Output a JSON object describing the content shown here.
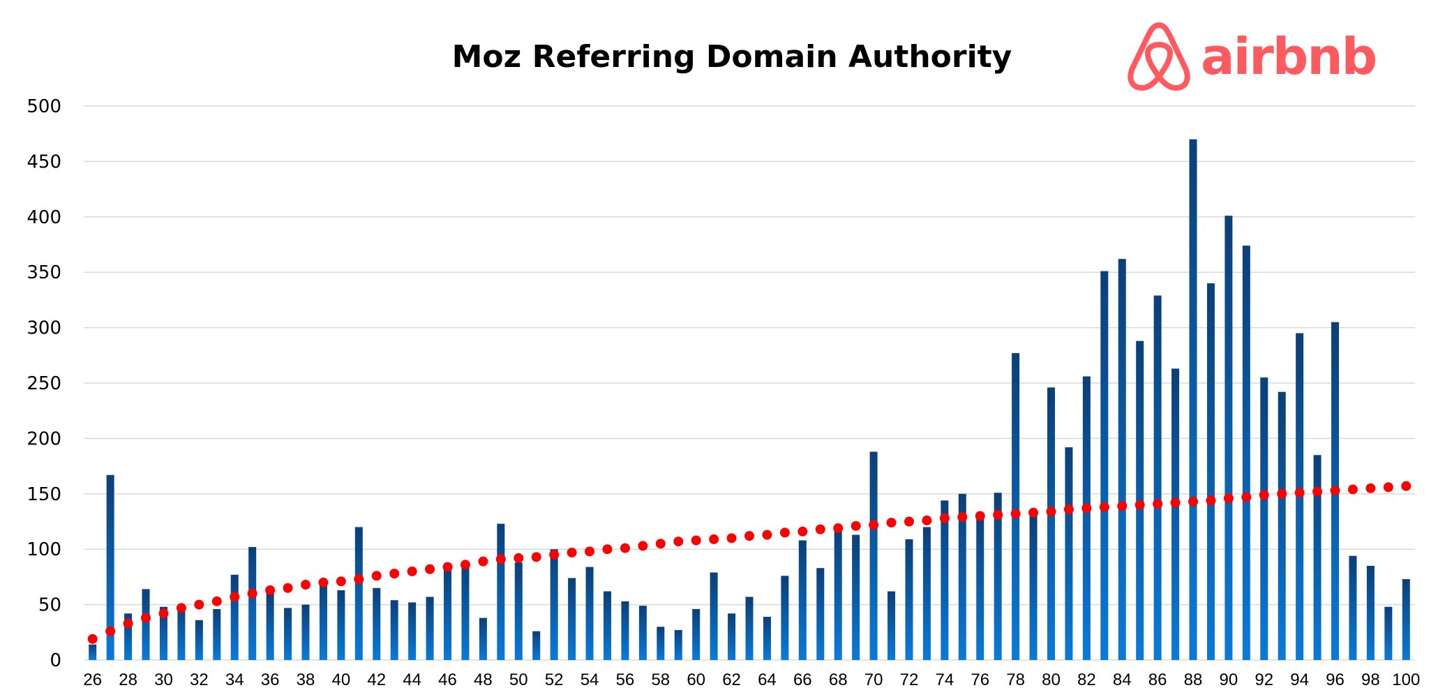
{
  "chart_data": {
    "type": "bar",
    "title": "Moz Referring Domain Authority",
    "xlabel": "",
    "ylabel": "",
    "ylim": [
      0,
      500
    ],
    "yticks": [
      0,
      50,
      100,
      150,
      200,
      250,
      300,
      350,
      400,
      450,
      500
    ],
    "grid": true,
    "legend": "none",
    "x": [
      26,
      27,
      28,
      29,
      30,
      31,
      32,
      33,
      34,
      35,
      36,
      37,
      38,
      39,
      40,
      41,
      42,
      43,
      44,
      45,
      46,
      47,
      48,
      49,
      50,
      51,
      52,
      53,
      54,
      55,
      56,
      57,
      58,
      59,
      60,
      61,
      62,
      63,
      64,
      65,
      66,
      67,
      68,
      69,
      70,
      71,
      72,
      73,
      74,
      75,
      76,
      77,
      78,
      79,
      80,
      81,
      82,
      83,
      84,
      85,
      86,
      87,
      88,
      89,
      90,
      91,
      92,
      93,
      94,
      95,
      96,
      97,
      98,
      99,
      100
    ],
    "series": [
      {
        "type": "bar",
        "color_top": "#0b3f78",
        "color_bottom": "#0a7ad8",
        "values": [
          14,
          167,
          42,
          64,
          48,
          49,
          36,
          46,
          77,
          102,
          60,
          47,
          50,
          72,
          63,
          120,
          65,
          54,
          52,
          57,
          85,
          87,
          38,
          123,
          88,
          26,
          100,
          74,
          84,
          62,
          53,
          49,
          30,
          27,
          46,
          79,
          42,
          57,
          39,
          76,
          108,
          83,
          119,
          113,
          188,
          62,
          109,
          120,
          144,
          150,
          133,
          151,
          277,
          131,
          246,
          192,
          256,
          351,
          362,
          288,
          329,
          263,
          470,
          340,
          401,
          374,
          255,
          242,
          295,
          185,
          305,
          94,
          85,
          48,
          73
        ]
      },
      {
        "type": "trendline-dots",
        "color": "#ff0000",
        "values": [
          19,
          26,
          33,
          38,
          42,
          47,
          50,
          53,
          57,
          60,
          63,
          65,
          68,
          70,
          71,
          73,
          76,
          78,
          80,
          82,
          84,
          86,
          89,
          91,
          92,
          93,
          95,
          97,
          98,
          100,
          101,
          103,
          105,
          107,
          108,
          109,
          110,
          112,
          113,
          115,
          116,
          118,
          119,
          121,
          122,
          124,
          125,
          126,
          128,
          129,
          130,
          131,
          132,
          133,
          134,
          136,
          137,
          138,
          139,
          140,
          141,
          142,
          143,
          144,
          146,
          147,
          149,
          150,
          151,
          152,
          153,
          154,
          155,
          156,
          157
        ]
      }
    ]
  },
  "logo": {
    "text": "airbnb",
    "color": "#FF5A5F"
  }
}
